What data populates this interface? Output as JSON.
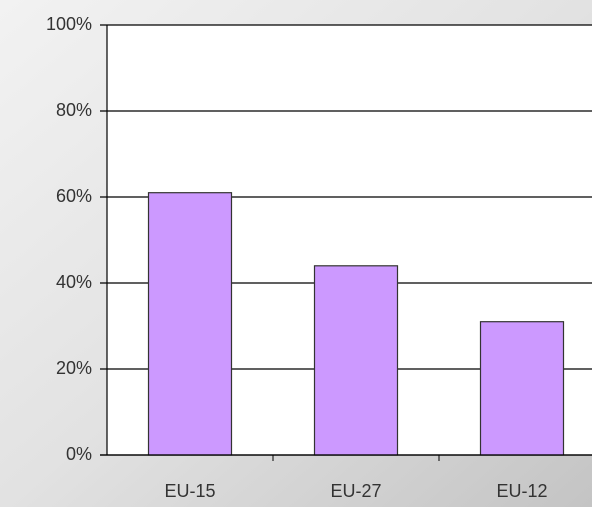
{
  "chart_data": {
    "type": "bar",
    "categories": [
      "EU-15",
      "EU-27",
      "EU-12"
    ],
    "values": [
      61,
      44,
      31
    ],
    "color": "#cc99ff",
    "ylim": [
      0,
      100
    ],
    "yticks": [
      {
        "value": 0,
        "label": "0%"
      },
      {
        "value": 20,
        "label": "20%"
      },
      {
        "value": 40,
        "label": "40%"
      },
      {
        "value": 60,
        "label": "60%"
      },
      {
        "value": 80,
        "label": "80%"
      },
      {
        "value": 100,
        "label": "100%"
      }
    ],
    "grid": true
  }
}
